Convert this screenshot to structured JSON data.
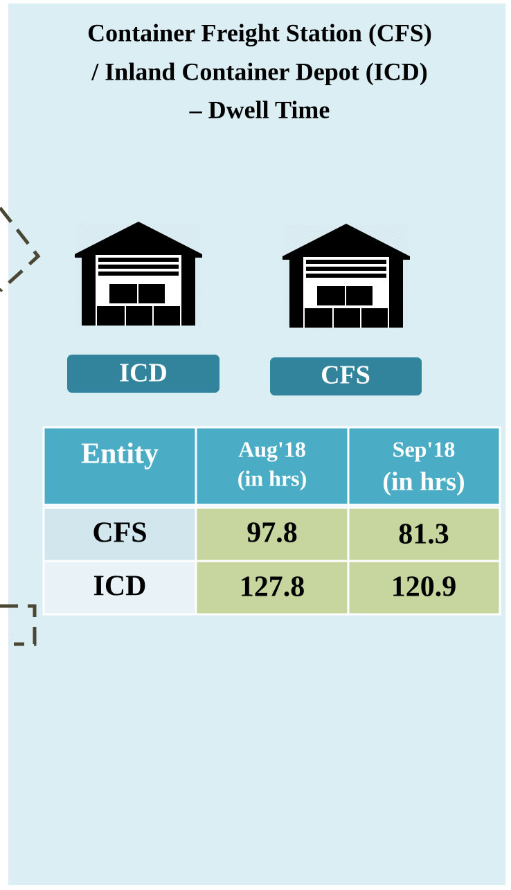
{
  "title_lines": [
    "Container Freight Station (CFS)",
    "/ Inland Container Depot (ICD)",
    "– Dwell Time"
  ],
  "icon_labels": [
    "ICD",
    "CFS"
  ],
  "table": {
    "header": {
      "entity": "Entity",
      "columns": [
        [
          "Aug'18",
          "(in hrs)"
        ],
        [
          "Sep'18",
          "(in hrs)"
        ]
      ]
    },
    "rows": [
      [
        "CFS",
        97.8,
        81.3
      ],
      [
        "ICD",
        127.8,
        120.9
      ]
    ]
  }
}
